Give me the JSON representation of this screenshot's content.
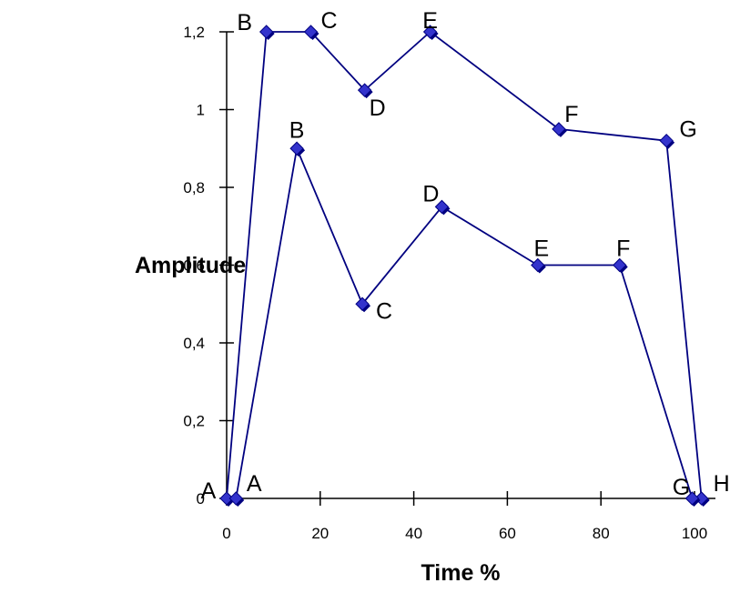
{
  "chart_data": {
    "type": "line",
    "title": "",
    "xlabel": "Time %",
    "ylabel": "Amplitude",
    "xlim": [
      0,
      100
    ],
    "ylim": [
      0,
      1.2
    ],
    "x_ticks": [
      0,
      20,
      40,
      60,
      80,
      100
    ],
    "y_ticks": [
      0,
      0.2,
      0.4,
      0.6,
      0.8,
      1,
      1.2
    ],
    "x_tick_labels": [
      "0",
      "20",
      "40",
      "60",
      "80",
      "100"
    ],
    "y_tick_labels": [
      "0",
      "0,2",
      "0,4",
      "0,6",
      "0,8",
      "1",
      "1,2"
    ],
    "grid": false,
    "line_color": "#000080",
    "marker_color": "#3333CC",
    "series": [
      {
        "points": [
          {
            "x": 0,
            "y": 0,
            "label": "A"
          },
          {
            "x": 8.5,
            "y": 1.2,
            "label": "B"
          },
          {
            "x": 18,
            "y": 1.2,
            "label": "C"
          },
          {
            "x": 29.5,
            "y": 1.05,
            "label": "D"
          },
          {
            "x": 43.5,
            "y": 1.2,
            "label": "E"
          },
          {
            "x": 71,
            "y": 0.95,
            "label": "F"
          },
          {
            "x": 94,
            "y": 0.92,
            "label": "G"
          },
          {
            "x": 101.5,
            "y": 0,
            "label": "H"
          }
        ]
      },
      {
        "points": [
          {
            "x": 2,
            "y": 0,
            "label": "A"
          },
          {
            "x": 15,
            "y": 0.9,
            "label": "B"
          },
          {
            "x": 29,
            "y": 0.5,
            "label": "C"
          },
          {
            "x": 46,
            "y": 0.75,
            "label": "D"
          },
          {
            "x": 66.5,
            "y": 0.6,
            "label": "E"
          },
          {
            "x": 84,
            "y": 0.6,
            "label": "F"
          },
          {
            "x": 99.5,
            "y": 0,
            "label": "G"
          }
        ]
      }
    ]
  }
}
